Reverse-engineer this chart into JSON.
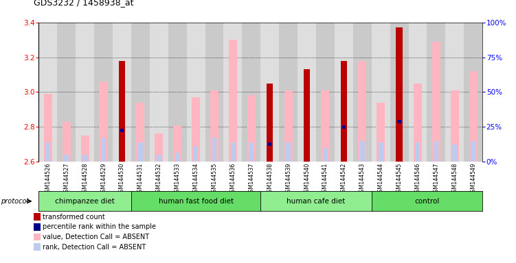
{
  "title": "GDS3232 / 1458938_at",
  "samples": [
    "GSM144526",
    "GSM144527",
    "GSM144528",
    "GSM144529",
    "GSM144530",
    "GSM144531",
    "GSM144532",
    "GSM144533",
    "GSM144534",
    "GSM144535",
    "GSM144536",
    "GSM144537",
    "GSM144538",
    "GSM144539",
    "GSM144540",
    "GSM144541",
    "GSM144542",
    "GSM144543",
    "GSM144544",
    "GSM144545",
    "GSM144546",
    "GSM144547",
    "GSM144548",
    "GSM144549"
  ],
  "groups": [
    {
      "label": "chimpanzee diet",
      "start": 0,
      "end": 5,
      "color": "#90EE90"
    },
    {
      "label": "human fast food diet",
      "start": 5,
      "end": 12,
      "color": "#66DD66"
    },
    {
      "label": "human cafe diet",
      "start": 12,
      "end": 18,
      "color": "#90EE90"
    },
    {
      "label": "control",
      "start": 18,
      "end": 24,
      "color": "#66DD66"
    }
  ],
  "red_bars": [
    null,
    null,
    null,
    null,
    3.18,
    null,
    null,
    null,
    null,
    null,
    null,
    null,
    3.05,
    null,
    3.13,
    null,
    3.18,
    null,
    null,
    3.37,
    null,
    null,
    null,
    null
  ],
  "pink_bars": [
    2.99,
    2.83,
    2.75,
    3.06,
    null,
    2.94,
    2.76,
    2.81,
    2.97,
    3.01,
    3.3,
    2.98,
    null,
    3.01,
    null,
    3.01,
    null,
    3.18,
    2.94,
    null,
    3.05,
    3.29,
    3.01,
    3.12
  ],
  "blue_vals": [
    null,
    null,
    null,
    null,
    2.78,
    null,
    null,
    null,
    null,
    null,
    null,
    null,
    2.7,
    null,
    null,
    null,
    2.8,
    null,
    null,
    2.83,
    null,
    null,
    null,
    null
  ],
  "lavender_bars": [
    2.71,
    2.64,
    2.64,
    2.74,
    2.63,
    2.71,
    2.64,
    2.65,
    2.69,
    2.74,
    2.71,
    2.71,
    2.7,
    2.71,
    2.75,
    2.68,
    2.8,
    2.72,
    2.71,
    2.72,
    2.71,
    2.72,
    2.7,
    2.72
  ],
  "ymin": 2.6,
  "ymax": 3.4,
  "yticks_left": [
    2.6,
    2.8,
    3.0,
    3.2,
    3.4
  ],
  "yticks_right_pct": [
    0,
    25,
    50,
    75,
    100
  ],
  "pink_color": "#FFB6C1",
  "red_color": "#BB0000",
  "blue_color": "#00008B",
  "lavender_color": "#BBCCEE",
  "legend_items": [
    {
      "color": "#BB0000",
      "label": "transformed count"
    },
    {
      "color": "#00008B",
      "label": "percentile rank within the sample"
    },
    {
      "color": "#FFB6C1",
      "label": "value, Detection Call = ABSENT"
    },
    {
      "color": "#BBCCEE",
      "label": "rank, Detection Call = ABSENT"
    }
  ]
}
